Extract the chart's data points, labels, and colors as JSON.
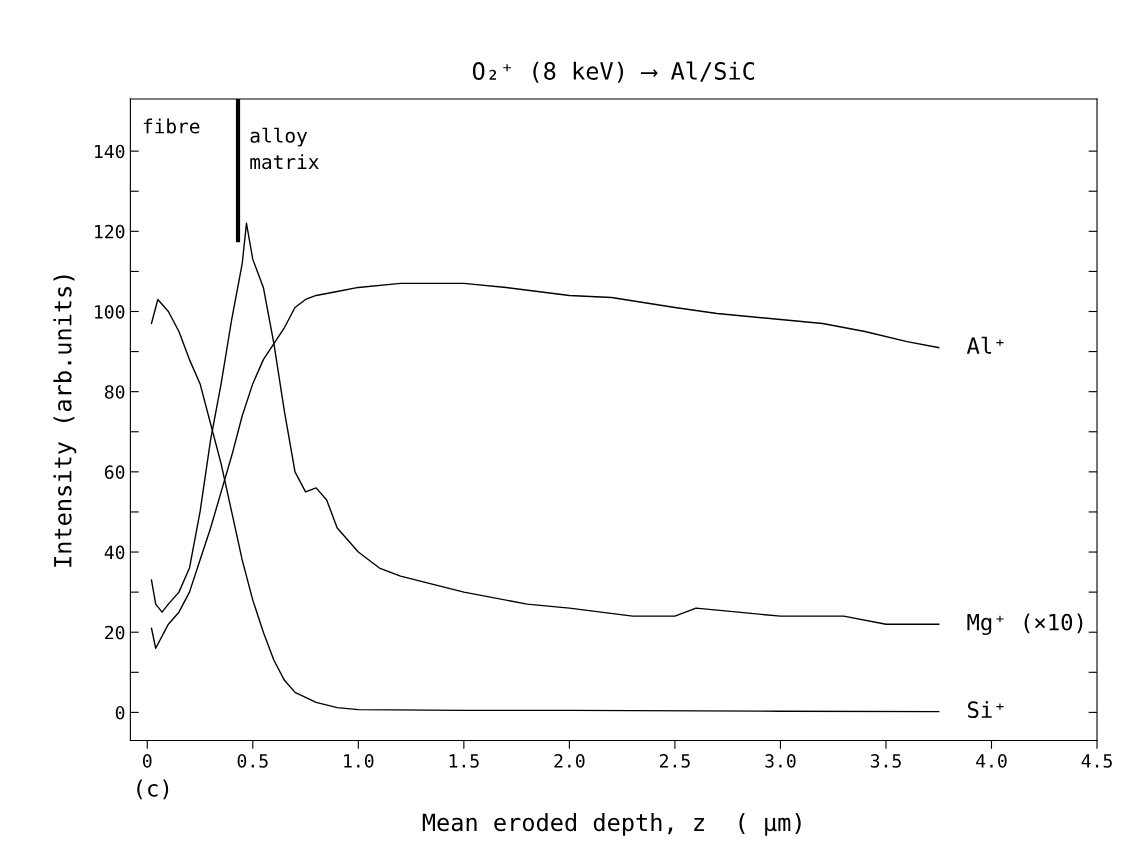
{
  "chart_data": {
    "type": "line",
    "title": "O₂⁺ (8 keV) ⟶ Al/SiC",
    "xlabel": "Mean eroded depth, z  ( µm)",
    "ylabel": "Intensity (arb.units)",
    "xlim": [
      -0.08,
      4.5
    ],
    "ylim": [
      -7,
      153
    ],
    "xticks": [
      0,
      0.5,
      {
        "value": 1,
        "label": "1.0"
      },
      1.5,
      {
        "value": 2,
        "label": "2.0"
      },
      2.5,
      {
        "value": 3,
        "label": "3.0"
      },
      3.5,
      {
        "value": 4,
        "label": "4.0"
      },
      4.5
    ],
    "yticks": [
      0,
      {
        "value": 10,
        "label": null
      },
      20,
      {
        "value": 30,
        "label": null
      },
      40,
      {
        "value": 50,
        "label": null
      },
      60,
      {
        "value": 70,
        "label": null
      },
      80,
      {
        "value": 90,
        "label": null
      },
      100,
      {
        "value": 110,
        "label": null
      },
      120,
      {
        "value": 130,
        "label": null
      },
      140
    ],
    "grid": false,
    "legend": "right",
    "marker": "none",
    "line_style": "solid",
    "series": [
      {
        "name": "Al⁺",
        "color": "#000000",
        "x": [
          0.02,
          0.04,
          0.1,
          0.15,
          0.2,
          0.25,
          0.3,
          0.35,
          0.4,
          0.45,
          0.5,
          0.55,
          0.6,
          0.65,
          0.7,
          0.75,
          0.8,
          0.9,
          1.0,
          1.2,
          1.5,
          1.7,
          2.0,
          2.2,
          2.5,
          2.7,
          3.0,
          3.2,
          3.4,
          3.6,
          3.75
        ],
        "values": [
          21,
          16,
          22,
          25,
          30,
          38,
          46,
          55,
          64,
          74,
          82,
          88,
          92,
          96,
          101,
          103,
          104,
          105,
          106,
          107,
          107,
          106,
          104,
          103.5,
          101,
          99.5,
          98,
          97,
          95,
          92.5,
          91
        ]
      },
      {
        "name": "Mg⁺ (×10)",
        "color": "#000000",
        "x": [
          0.02,
          0.04,
          0.07,
          0.1,
          0.15,
          0.2,
          0.25,
          0.3,
          0.35,
          0.4,
          0.45,
          0.47,
          0.5,
          0.55,
          0.6,
          0.65,
          0.7,
          0.75,
          0.8,
          0.85,
          0.9,
          1.0,
          1.1,
          1.2,
          1.5,
          1.8,
          2.0,
          2.3,
          2.5,
          2.6,
          2.8,
          3.0,
          3.3,
          3.5,
          3.75
        ],
        "values": [
          33,
          27,
          25,
          27,
          30,
          36,
          50,
          68,
          82,
          98,
          112,
          122,
          113,
          106,
          92,
          75,
          60,
          55,
          56,
          53,
          46,
          40,
          36,
          34,
          30,
          27,
          26,
          24,
          24,
          26,
          25,
          24,
          24,
          22,
          22
        ]
      },
      {
        "name": "Si⁺",
        "color": "#000000",
        "x": [
          0.02,
          0.05,
          0.1,
          0.15,
          0.2,
          0.25,
          0.3,
          0.35,
          0.4,
          0.45,
          0.5,
          0.55,
          0.6,
          0.65,
          0.7,
          0.8,
          0.9,
          1.0,
          1.5,
          2.0,
          3.0,
          3.75
        ],
        "values": [
          97,
          103,
          100,
          95,
          88,
          82,
          72,
          62,
          50,
          38,
          28,
          20,
          13,
          8,
          5,
          2.5,
          1.2,
          0.7,
          0.5,
          0.5,
          0.3,
          0.2
        ]
      }
    ],
    "ref_lines": [
      {
        "axis": "x",
        "value": 0.43,
        "color": "#000000",
        "line_style": "solid"
      }
    ],
    "annotations": [
      "fibre",
      "alloy\nmatrix",
      "(c)"
    ]
  }
}
